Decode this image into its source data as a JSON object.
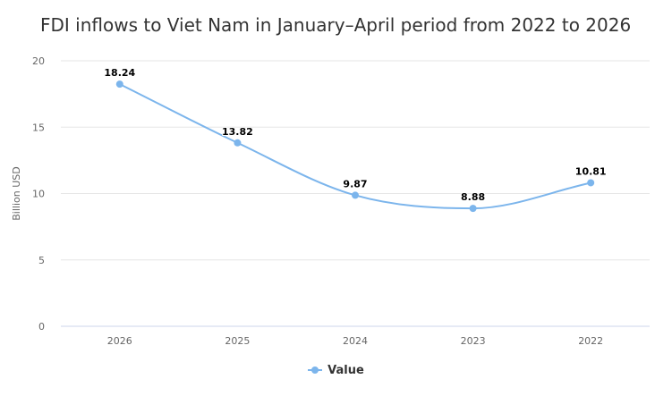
{
  "chart_data": {
    "type": "line",
    "title": "FDI inflows to Viet Nam in January–April period from 2022 to 2026",
    "ylabel": "Billion USD",
    "xlabel": "",
    "categories": [
      "2026",
      "2025",
      "2024",
      "2023",
      "2022"
    ],
    "series": [
      {
        "name": "Value",
        "values": [
          18.24,
          13.82,
          9.87,
          8.88,
          10.81
        ],
        "color": "#7cb5ec"
      }
    ],
    "ylim": [
      0,
      20
    ],
    "yticks": [
      "0",
      "5",
      "10",
      "15",
      "20"
    ],
    "data_labels": [
      "18.24",
      "13.82",
      "9.87",
      "8.88",
      "10.81"
    ],
    "grid": true,
    "legend": "bottom-center",
    "smooth": true
  }
}
